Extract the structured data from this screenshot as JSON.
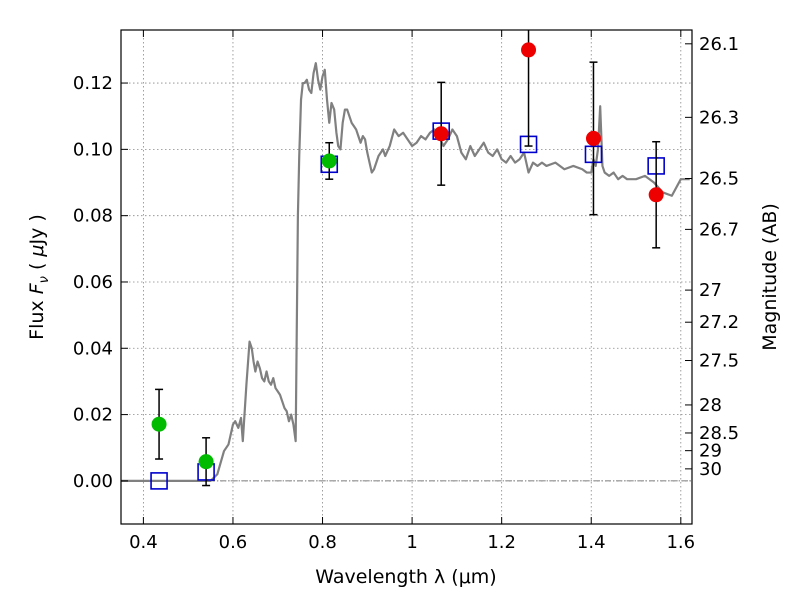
{
  "chart_data": {
    "type": "scatter",
    "title": "",
    "xlabel": "Wavelength  λ (μm)",
    "ylabel": "Flux  F_ν  ( μJy )",
    "ylabel_parts": {
      "pre": "Flux  ",
      "F": "F",
      "nu": "ν",
      "post": "  ( ",
      "mu": "μ",
      "unit": "Jy )"
    },
    "y2label": "Magnitude (AB)",
    "xlim": [
      0.35,
      1.625
    ],
    "ylim": [
      -0.013,
      0.136
    ],
    "grid": true,
    "x_ticks": [
      {
        "value": 0.4,
        "label": "0.4"
      },
      {
        "value": 0.6,
        "label": "0.6"
      },
      {
        "value": 0.8,
        "label": "0.8"
      },
      {
        "value": 1.0,
        "label": "1"
      },
      {
        "value": 1.2,
        "label": "1.2"
      },
      {
        "value": 1.4,
        "label": "1.4"
      },
      {
        "value": 1.6,
        "label": "1.6"
      }
    ],
    "y_ticks": [
      {
        "value": 0.0,
        "label": "0.00"
      },
      {
        "value": 0.02,
        "label": "0.02"
      },
      {
        "value": 0.04,
        "label": "0.04"
      },
      {
        "value": 0.06,
        "label": "0.06"
      },
      {
        "value": 0.08,
        "label": "0.08"
      },
      {
        "value": 0.1,
        "label": "0.10"
      },
      {
        "value": 0.12,
        "label": "0.12"
      }
    ],
    "y2_ticks": [
      {
        "mag": 26.1,
        "label": "26.1"
      },
      {
        "mag": 26.3,
        "label": "26.3"
      },
      {
        "mag": 26.5,
        "label": "26.5"
      },
      {
        "mag": 26.7,
        "label": "26.7"
      },
      {
        "mag": 27.0,
        "label": "27"
      },
      {
        "mag": 27.2,
        "label": "27.2"
      },
      {
        "mag": 27.5,
        "label": "27.5"
      },
      {
        "mag": 28.0,
        "label": "28"
      },
      {
        "mag": 28.5,
        "label": "28.5"
      },
      {
        "mag": 29.0,
        "label": "29"
      },
      {
        "mag": 30.0,
        "label": "30"
      }
    ],
    "colors": {
      "model": "#808080",
      "green": "#00bb00",
      "red": "#ee0000",
      "square": "#0000cc",
      "errorbar": "#000000",
      "grid": "#888888"
    },
    "model_spectrum": {
      "name": "",
      "x": [
        0.35,
        0.55,
        0.565,
        0.58,
        0.59,
        0.6,
        0.605,
        0.612,
        0.618,
        0.622,
        0.63,
        0.637,
        0.642,
        0.646,
        0.65,
        0.655,
        0.66,
        0.665,
        0.67,
        0.675,
        0.68,
        0.685,
        0.69,
        0.695,
        0.7,
        0.705,
        0.71,
        0.715,
        0.72,
        0.725,
        0.73,
        0.735,
        0.74,
        0.745,
        0.748,
        0.752,
        0.756,
        0.76,
        0.765,
        0.77,
        0.775,
        0.78,
        0.785,
        0.79,
        0.795,
        0.8,
        0.805,
        0.81,
        0.815,
        0.82,
        0.826,
        0.831,
        0.835,
        0.84,
        0.845,
        0.85,
        0.855,
        0.86,
        0.865,
        0.87,
        0.875,
        0.88,
        0.885,
        0.89,
        0.895,
        0.9,
        0.905,
        0.91,
        0.915,
        0.92,
        0.925,
        0.93,
        0.935,
        0.94,
        0.95,
        0.96,
        0.97,
        0.98,
        0.99,
        1.0,
        1.01,
        1.02,
        1.03,
        1.04,
        1.05,
        1.06,
        1.07,
        1.08,
        1.09,
        1.1,
        1.11,
        1.12,
        1.13,
        1.14,
        1.15,
        1.16,
        1.17,
        1.18,
        1.19,
        1.2,
        1.21,
        1.22,
        1.23,
        1.24,
        1.25,
        1.26,
        1.27,
        1.28,
        1.29,
        1.3,
        1.32,
        1.34,
        1.36,
        1.38,
        1.39,
        1.4,
        1.405,
        1.41,
        1.415,
        1.42,
        1.425,
        1.43,
        1.44,
        1.45,
        1.46,
        1.47,
        1.48,
        1.5,
        1.52,
        1.54,
        1.56,
        1.58,
        1.6,
        1.62
      ],
      "y": [
        0.0,
        0.0,
        0.002,
        0.009,
        0.011,
        0.017,
        0.018,
        0.016,
        0.019,
        0.012,
        0.029,
        0.042,
        0.04,
        0.036,
        0.033,
        0.036,
        0.034,
        0.031,
        0.03,
        0.033,
        0.03,
        0.029,
        0.031,
        0.028,
        0.027,
        0.026,
        0.024,
        0.022,
        0.021,
        0.018,
        0.02,
        0.017,
        0.012,
        0.08,
        0.098,
        0.115,
        0.12,
        0.12,
        0.121,
        0.118,
        0.117,
        0.123,
        0.126,
        0.121,
        0.118,
        0.122,
        0.124,
        0.115,
        0.108,
        0.114,
        0.112,
        0.105,
        0.101,
        0.1,
        0.108,
        0.112,
        0.112,
        0.11,
        0.108,
        0.107,
        0.106,
        0.104,
        0.102,
        0.104,
        0.103,
        0.099,
        0.096,
        0.093,
        0.094,
        0.096,
        0.098,
        0.099,
        0.1,
        0.098,
        0.101,
        0.106,
        0.104,
        0.105,
        0.103,
        0.101,
        0.102,
        0.104,
        0.103,
        0.105,
        0.106,
        0.104,
        0.101,
        0.103,
        0.106,
        0.104,
        0.099,
        0.097,
        0.101,
        0.098,
        0.1,
        0.102,
        0.099,
        0.098,
        0.1,
        0.097,
        0.096,
        0.098,
        0.096,
        0.097,
        0.099,
        0.093,
        0.096,
        0.095,
        0.096,
        0.095,
        0.096,
        0.094,
        0.095,
        0.094,
        0.093,
        0.093,
        0.097,
        0.095,
        0.1,
        0.113,
        0.095,
        0.093,
        0.092,
        0.093,
        0.091,
        0.092,
        0.091,
        0.091,
        0.092,
        0.09,
        0.087,
        0.086,
        0.091,
        0.091
      ]
    },
    "green_points": [
      {
        "x": 0.435,
        "y": 0.0171,
        "err": 0.0105
      },
      {
        "x": 0.54,
        "y": 0.0058,
        "err": 0.0072
      },
      {
        "x": 0.815,
        "y": 0.0965,
        "err": 0.0055
      }
    ],
    "red_points": [
      {
        "x": 1.065,
        "y": 0.1047,
        "err": 0.0155
      },
      {
        "x": 1.26,
        "y": 0.13,
        "err": 0.029
      },
      {
        "x": 1.405,
        "y": 0.1033,
        "err": 0.023
      },
      {
        "x": 1.545,
        "y": 0.0863,
        "err": 0.016
      }
    ],
    "model_squares": [
      {
        "x": 0.435,
        "y": 0.0
      },
      {
        "x": 0.54,
        "y": 0.0027
      },
      {
        "x": 0.815,
        "y": 0.0955
      },
      {
        "x": 1.065,
        "y": 0.1055
      },
      {
        "x": 1.26,
        "y": 0.1015
      },
      {
        "x": 1.405,
        "y": 0.0985
      },
      {
        "x": 1.545,
        "y": 0.095
      }
    ]
  }
}
